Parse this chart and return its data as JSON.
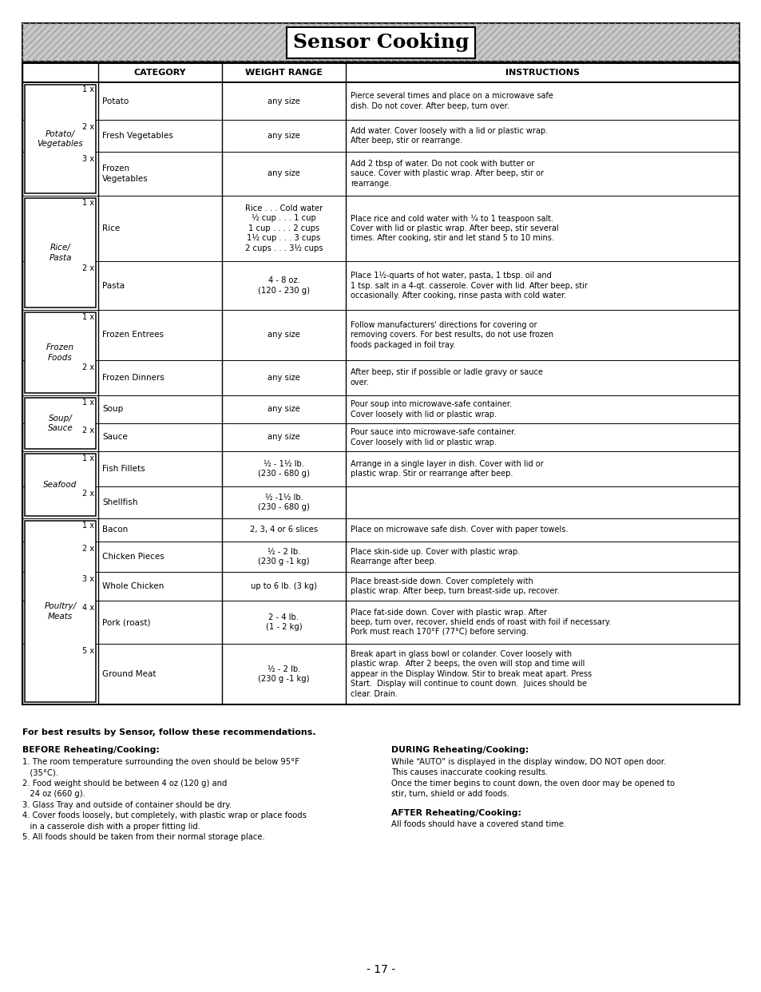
{
  "title": "Sensor Cooking",
  "page_number": "- 17 -",
  "table_headers": [
    "CATEGORY",
    "WEIGHT RANGE",
    "INSTRUCTIONS"
  ],
  "rows": [
    {
      "mult": "1",
      "category": "Potato",
      "weight": "any size",
      "instructions": "Pierce several times and place on a microwave safe\ndish. Do not cover. After beep, turn over."
    },
    {
      "mult": "2",
      "category": "Fresh Vegetables",
      "weight": "any size",
      "instructions": "Add water. Cover loosely with a lid or plastic wrap.\nAfter beep, stir or rearrange."
    },
    {
      "mult": "3",
      "category": "Frozen\nVegetables",
      "weight": "any size",
      "instructions": "Add 2 tbsp of water. Do not cook with butter or\nsauce. Cover with plastic wrap. After beep, stir or\nrearrange."
    },
    {
      "mult": "1",
      "category": "Rice",
      "weight": "Rice . . . Cold water\n½ cup . . . 1 cup\n1 cup . . . . 2 cups\n1½ cup . . . 3 cups\n2 cups . . . 3½ cups",
      "instructions": "Place rice and cold water with ¼ to 1 teaspoon salt.\nCover with lid or plastic wrap. After beep, stir several\ntimes. After cooking, stir and let stand 5 to 10 mins."
    },
    {
      "mult": "2",
      "category": "Pasta",
      "weight": "4 - 8 oz.\n(120 - 230 g)",
      "instructions": "Place 1½-quarts of hot water, pasta, 1 tbsp. oil and\n1 tsp. salt in a 4-qt. casserole. Cover with lid. After beep, stir\noccasionally. After cooking, rinse pasta with cold water."
    },
    {
      "mult": "1",
      "category": "Frozen Entrees",
      "weight": "any size",
      "instructions": "Follow manufacturers' directions for covering or\nremoving covers. For best results, do not use frozen\nfoods packaged in foil tray."
    },
    {
      "mult": "2",
      "category": "Frozen Dinners",
      "weight": "any size",
      "instructions": "After beep, stir if possible or ladle gravy or sauce\nover."
    },
    {
      "mult": "1",
      "category": "Soup",
      "weight": "any size",
      "instructions": "Pour soup into microwave-safe container.\nCover loosely with lid or plastic wrap."
    },
    {
      "mult": "2",
      "category": "Sauce",
      "weight": "any size",
      "instructions": "Pour sauce into microwave-safe container.\nCover loosely with lid or plastic wrap."
    },
    {
      "mult": "1",
      "category": "Fish Fillets",
      "weight": "½ - 1½ lb.\n(230 - 680 g)",
      "instructions": "Arrange in a single layer in dish. Cover with lid or\nplastic wrap. Stir or rearrange after beep."
    },
    {
      "mult": "2",
      "category": "Shellfish",
      "weight": "½ -1½ lb.\n(230 - 680 g)",
      "instructions": ""
    },
    {
      "mult": "1",
      "category": "Bacon",
      "weight": "2, 3, 4 or 6 slices",
      "instructions": "Place on microwave safe dish. Cover with paper towels."
    },
    {
      "mult": "2",
      "category": "Chicken Pieces",
      "weight": "½ - 2 lb.\n(230 g -1 kg)",
      "instructions": "Place skin-side up. Cover with plastic wrap.\nRearrange after beep."
    },
    {
      "mult": "3",
      "category": "Whole Chicken",
      "weight": "up to 6 lb. (3 kg)",
      "instructions": "Place breast-side down. Cover completely with\nplastic wrap. After beep, turn breast-side up, recover."
    },
    {
      "mult": "4",
      "category": "Pork (roast)",
      "weight": "2 - 4 lb.\n(1 - 2 kg)",
      "instructions": "Place fat-side down. Cover with plastic wrap. After\nbeep, turn over, recover, shield ends of roast with foil if necessary.\nPork must reach 170°F (77°C) before serving."
    },
    {
      "mult": "5",
      "category": "Ground Meat",
      "weight": "½ - 2 lb.\n(230 g -1 kg)",
      "instructions": "Break apart in glass bowl or colander. Cover loosely with\nplastic wrap.  After 2 beeps, the oven will stop and time will\nappear in the Display Window. Stir to break meat apart. Press\nStart.  Display will continue to count down.  Juices should be\nclear. Drain."
    }
  ],
  "groups": [
    {
      "label": "Potato/\nVegetables",
      "rows": [
        0,
        1,
        2
      ]
    },
    {
      "label": "Rice/\nPasta",
      "rows": [
        3,
        4
      ]
    },
    {
      "label": "Frozen\nFoods",
      "rows": [
        5,
        6
      ]
    },
    {
      "label": "Soup/\nSauce",
      "rows": [
        7,
        8
      ]
    },
    {
      "label": "Seafood",
      "rows": [
        9,
        10
      ]
    },
    {
      "label": "Poultry/\nMeats",
      "rows": [
        11,
        12,
        13,
        14,
        15
      ]
    }
  ],
  "bottom_text_left_title": "For best results by Sensor, follow these recommendations.",
  "before_title": "BEFORE Reheating/Cooking:",
  "before_items": [
    "1. The room temperature surrounding the oven should be below 95°F",
    "   (35°C).",
    "2. Food weight should be between 4 oz (120 g) and",
    "   24 oz (660 g).",
    "3. Glass Tray and outside of container should be dry.",
    "4. Cover foods loosely, but completely, with plastic wrap or place foods",
    "   in a casserole dish with a proper fitting lid.",
    "5. All foods should be taken from their normal storage place."
  ],
  "during_title": "DURING Reheating/Cooking:",
  "during_lines": [
    "While “AUTO” is displayed in the display window, DO NOT open door.",
    "This causes inaccurate cooking results.",
    "Once the timer begins to count down, the oven door may be opened to",
    "stir, turn, shield or add foods."
  ],
  "after_title": "AFTER Reheating/Cooking:",
  "after_text": "All foods should have a covered stand time."
}
